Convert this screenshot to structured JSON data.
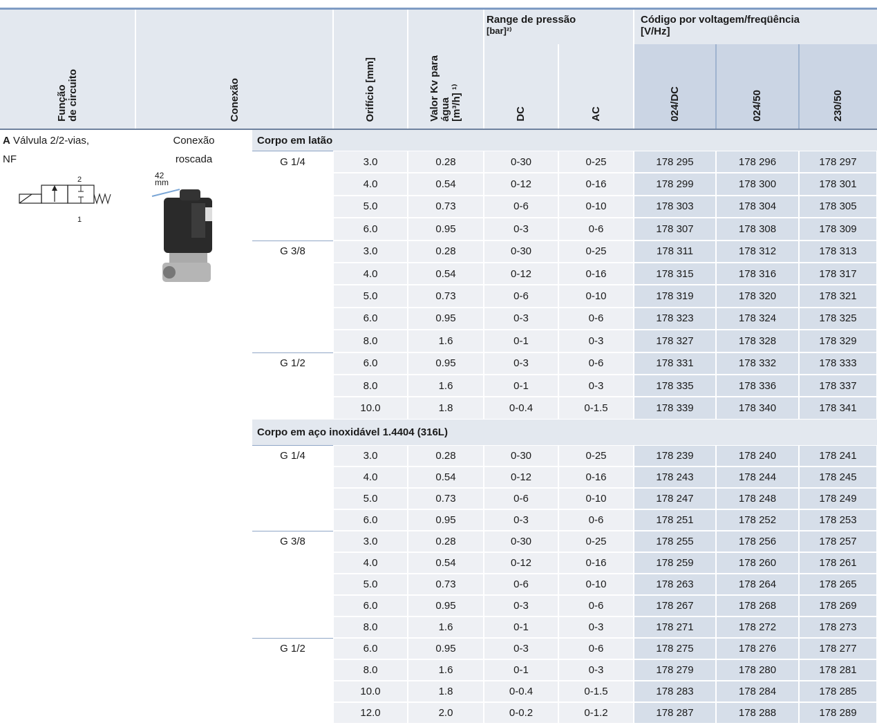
{
  "header": {
    "funcao": [
      "Função",
      "de circuito"
    ],
    "conexao": "Conexão",
    "orificio": [
      "Orifício [mm]"
    ],
    "kv": [
      "Valor Kv para",
      "água",
      "[m³/h] ¹⁾"
    ],
    "range": [
      "Range de pressão",
      "[bar]²⁾"
    ],
    "dc": "DC",
    "ac": "AC",
    "codigo": [
      "Código por voltagem/freqüência",
      "[V/Hz]"
    ],
    "voltages": [
      "024/DC",
      "024/50",
      "230/50"
    ]
  },
  "product": {
    "letter": "A",
    "line1": "Válvula 2/2-vias,",
    "line2": "NF",
    "port_labels": [
      "2",
      "1"
    ],
    "connection": [
      "Conexão",
      "roscada"
    ],
    "dimension": [
      "42",
      "mm"
    ]
  },
  "sections": [
    {
      "title": "Corpo em latão",
      "groups": [
        {
          "port": "G 1/4",
          "rows": [
            [
              "3.0",
              "0.28",
              "0-30",
              "0-25",
              "178 295",
              "178 296",
              "178 297"
            ],
            [
              "4.0",
              "0.54",
              "0-12",
              "0-16",
              "178 299",
              "178 300",
              "178 301"
            ],
            [
              "5.0",
              "0.73",
              "0-6",
              "0-10",
              "178 303",
              "178 304",
              "178 305"
            ],
            [
              "6.0",
              "0.95",
              "0-3",
              "0-6",
              "178 307",
              "178 308",
              "178 309"
            ]
          ]
        },
        {
          "port": "G 3/8",
          "rows": [
            [
              "3.0",
              "0.28",
              "0-30",
              "0-25",
              "178 311",
              "178 312",
              "178 313"
            ],
            [
              "4.0",
              "0.54",
              "0-12",
              "0-16",
              "178 315",
              "178 316",
              "178 317"
            ],
            [
              "5.0",
              "0.73",
              "0-6",
              "0-10",
              "178 319",
              "178 320",
              "178 321"
            ],
            [
              "6.0",
              "0.95",
              "0-3",
              "0-6",
              "178 323",
              "178 324",
              "178 325"
            ],
            [
              "8.0",
              "1.6",
              "0-1",
              "0-3",
              "178 327",
              "178 328",
              "178 329"
            ]
          ]
        },
        {
          "port": "G 1/2",
          "rows": [
            [
              "6.0",
              "0.95",
              "0-3",
              "0-6",
              "178 331",
              "178 332",
              "178 333"
            ],
            [
              "8.0",
              "1.6",
              "0-1",
              "0-3",
              "178 335",
              "178 336",
              "178 337"
            ],
            [
              "10.0",
              "1.8",
              "0-0.4",
              "0-1.5",
              "178 339",
              "178 340",
              "178 341"
            ]
          ]
        }
      ]
    },
    {
      "title": "Corpo em aço inoxidável 1.4404 (316L)",
      "groups": [
        {
          "port": "G 1/4",
          "rows": [
            [
              "3.0",
              "0.28",
              "0-30",
              "0-25",
              "178 239",
              "178 240",
              "178 241"
            ],
            [
              "4.0",
              "0.54",
              "0-12",
              "0-16",
              "178 243",
              "178 244",
              "178 245"
            ],
            [
              "5.0",
              "0.73",
              "0-6",
              "0-10",
              "178 247",
              "178 248",
              "178 249"
            ],
            [
              "6.0",
              "0.95",
              "0-3",
              "0-6",
              "178 251",
              "178 252",
              "178 253"
            ]
          ]
        },
        {
          "port": "G 3/8",
          "rows": [
            [
              "3.0",
              "0.28",
              "0-30",
              "0-25",
              "178 255",
              "178 256",
              "178 257"
            ],
            [
              "4.0",
              "0.54",
              "0-12",
              "0-16",
              "178 259",
              "178 260",
              "178 261"
            ],
            [
              "5.0",
              "0.73",
              "0-6",
              "0-10",
              "178 263",
              "178 264",
              "178 265"
            ],
            [
              "6.0",
              "0.95",
              "0-3",
              "0-6",
              "178 267",
              "178 268",
              "178 269"
            ],
            [
              "8.0",
              "1.6",
              "0-1",
              "0-3",
              "178 271",
              "178 272",
              "178 273"
            ]
          ]
        },
        {
          "port": "G 1/2",
          "rows": [
            [
              "6.0",
              "0.95",
              "0-3",
              "0-6",
              "178 275",
              "178 276",
              "178 277"
            ],
            [
              "8.0",
              "1.6",
              "0-1",
              "0-3",
              "178 279",
              "178 280",
              "178 281"
            ],
            [
              "10.0",
              "1.8",
              "0-0.4",
              "0-1.5",
              "178 283",
              "178 284",
              "178 285"
            ],
            [
              "12.0",
              "2.0",
              "0-0.2",
              "0-1.2",
              "178 287",
              "178 288",
              "178 289"
            ]
          ]
        }
      ]
    }
  ]
}
